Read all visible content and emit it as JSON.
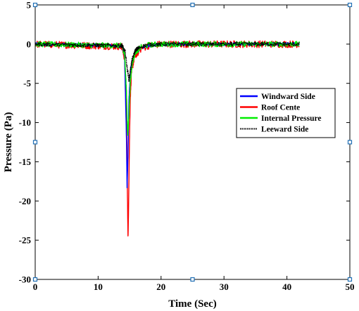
{
  "chart_data": {
    "type": "line",
    "xlabel": "Time (Sec)",
    "ylabel": "Pressure (Pa)",
    "xlim": [
      0,
      50
    ],
    "ylim": [
      -30,
      5
    ],
    "xticks": [
      "0",
      "10",
      "20",
      "30",
      "40",
      "50"
    ],
    "yticks": [
      "5",
      "0",
      "-5",
      "-10",
      "-15",
      "-20",
      "-25",
      "-30"
    ],
    "grid": false,
    "legend_position": "right",
    "series": [
      {
        "name": "Windward Side",
        "color": "#0000ff",
        "noise": 0.2,
        "x": [
          0,
          13.8,
          14.2,
          14.5,
          14.6,
          14.75,
          14.9,
          15.2,
          15.8,
          16.8,
          18,
          20,
          42
        ],
        "y": [
          0,
          -0.2,
          -1.5,
          -12,
          -18.5,
          -14,
          -7,
          -3,
          -1.2,
          -0.5,
          -0.2,
          0,
          0
        ]
      },
      {
        "name": "Roof Cente",
        "color": "#ff0000",
        "noise": 0.45,
        "x": [
          0,
          13.8,
          14.2,
          14.5,
          14.75,
          14.95,
          15.1,
          15.3,
          15.8,
          16.8,
          18,
          20,
          42
        ],
        "y": [
          0,
          -0.3,
          -1.8,
          -8,
          -25.3,
          -14,
          -7,
          -3.5,
          -1.5,
          -0.6,
          -0.2,
          0,
          0
        ]
      },
      {
        "name": "Internal Pressure",
        "color": "#00ee00",
        "noise": 0.35,
        "x": [
          0,
          13.8,
          14.2,
          14.5,
          14.7,
          14.9,
          15.1,
          15.4,
          15.9,
          16.8,
          18,
          20,
          42
        ],
        "y": [
          0,
          -0.2,
          -1.2,
          -6,
          -11.8,
          -9,
          -5,
          -2.5,
          -1,
          -0.4,
          -0.1,
          0,
          0
        ]
      },
      {
        "name": "Leeward Side",
        "color": "#000000",
        "dashed": true,
        "noise": 0.25,
        "x": [
          0,
          13.8,
          14.3,
          14.6,
          14.9,
          15.1,
          15.4,
          15.9,
          16.8,
          18,
          20,
          42
        ],
        "y": [
          0,
          -0.2,
          -1,
          -3,
          -4.5,
          -3.5,
          -2,
          -0.8,
          -0.3,
          -0.1,
          0,
          0
        ]
      }
    ]
  }
}
